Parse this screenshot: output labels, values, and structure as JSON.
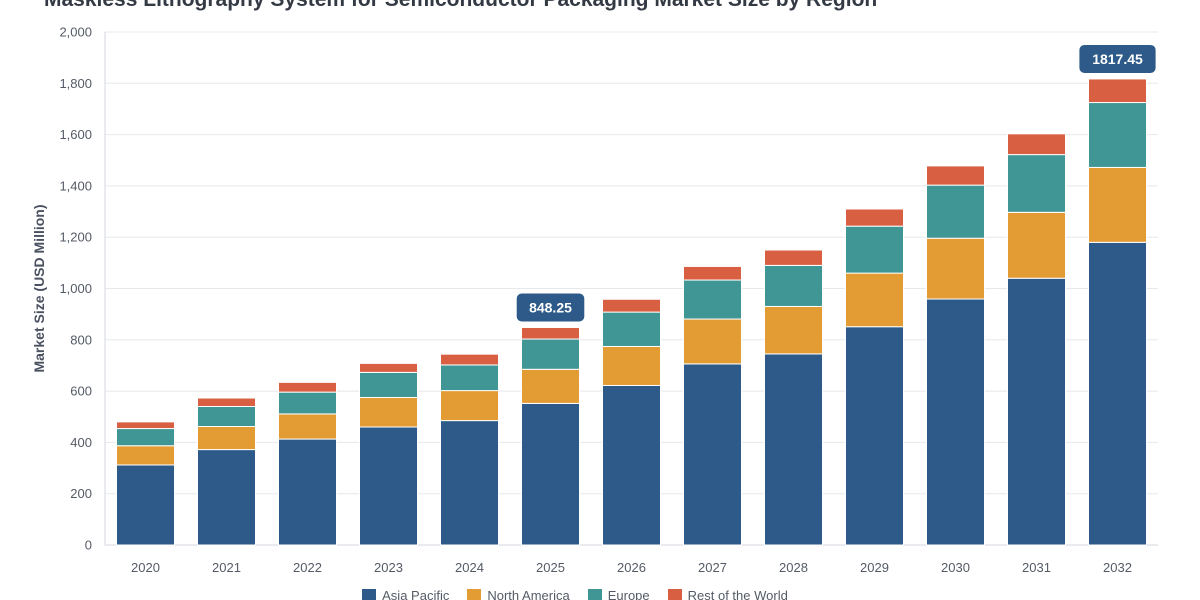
{
  "chart_data": {
    "type": "bar",
    "stacked": true,
    "title": "Maskless Lithography System for Semiconductor Packaging Market Size by Region",
    "ylabel": "Market Size (USD Million)",
    "xlabel": "",
    "ylim": [
      0,
      2000
    ],
    "y_ticks": [
      0,
      200,
      400,
      600,
      800,
      1000,
      1200,
      1400,
      1600,
      1800,
      2000
    ],
    "y_tick_labels": [
      "0",
      "200",
      "400",
      "600",
      "800",
      "1,000",
      "1,200",
      "1,400",
      "1,600",
      "1,800",
      "2,000"
    ],
    "grid": true,
    "legend_position": "bottom",
    "categories": [
      "2020",
      "2021",
      "2022",
      "2023",
      "2024",
      "2025",
      "2026",
      "2027",
      "2028",
      "2029",
      "2030",
      "2031",
      "2032"
    ],
    "series": [
      {
        "name": "Asia Pacific",
        "color": "#2d5a88",
        "values": [
          312,
          372,
          413,
          460,
          485,
          552,
          622,
          706,
          745,
          851,
          959,
          1040,
          1180
        ]
      },
      {
        "name": "North America",
        "color": "#e39b33",
        "values": [
          75,
          90,
          98,
          115,
          117,
          133,
          152,
          175,
          185,
          209,
          237,
          257,
          292
        ]
      },
      {
        "name": "Europe",
        "color": "#3f9694",
        "values": [
          67,
          78,
          85,
          98,
          100,
          118,
          134,
          152,
          160,
          183,
          207,
          225,
          253
        ]
      },
      {
        "name": "Rest of the World",
        "color": "#d95f42",
        "values": [
          26,
          33,
          38,
          35,
          42,
          45,
          50,
          53,
          60,
          67,
          75,
          81,
          92
        ]
      }
    ],
    "annotations": [
      {
        "category": "2025",
        "label": "848.25"
      },
      {
        "category": "2032",
        "label": "1817.45"
      }
    ]
  }
}
